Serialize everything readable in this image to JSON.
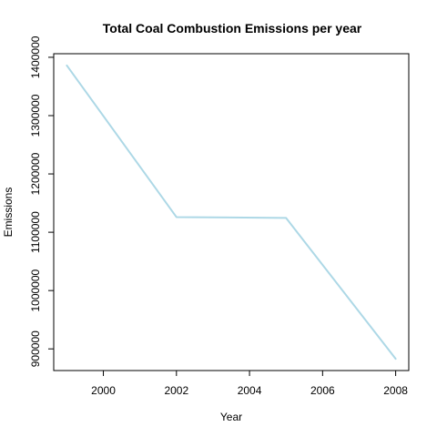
{
  "chart_data": {
    "type": "line",
    "title": "Total Coal Combustion Emissions per year",
    "xlabel": "Year",
    "ylabel": "Emissions",
    "x": [
      1999,
      2002,
      2005,
      2008
    ],
    "series": [
      {
        "values": [
          1386000,
          1126000,
          1124500,
          883000
        ],
        "color": "#add8e6"
      }
    ],
    "xlim": [
      1999,
      2008
    ],
    "ylim": [
      883000,
      1386000
    ],
    "xticks": [
      2000,
      2002,
      2004,
      2006,
      2008
    ],
    "xtick_labels": [
      "2000",
      "2002",
      "2004",
      "2006",
      "2008"
    ],
    "yticks": [
      900000,
      1000000,
      1100000,
      1200000,
      1300000,
      1400000
    ],
    "ytick_labels": [
      "900000",
      "1000000",
      "1100000",
      "1200000",
      "1300000",
      "1400000"
    ],
    "grid": false,
    "legend": "none"
  }
}
